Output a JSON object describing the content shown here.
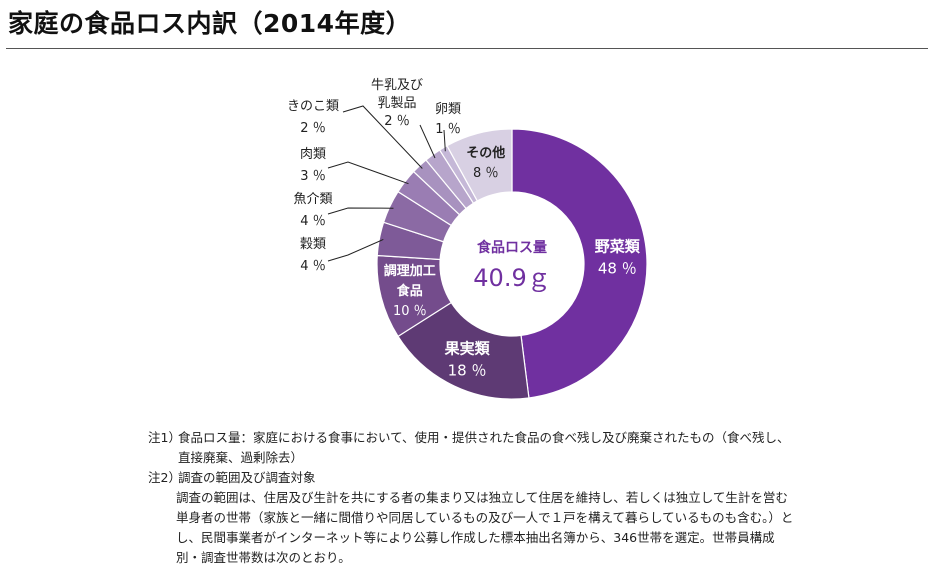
{
  "title": "家庭の食品ロス内訳（2014年度）",
  "chart_data": {
    "type": "pie",
    "variant": "donut",
    "center_label": "食品ロス量",
    "center_value": "40.9ｇ",
    "slices": [
      {
        "name_lines": [
          "野菜類"
        ],
        "value": 48,
        "label": "48 ％",
        "color": "#7030a0",
        "text_color": "#ffffff",
        "placement": "inside"
      },
      {
        "name_lines": [
          "果実類"
        ],
        "value": 18,
        "label": "18 ％",
        "color": "#5e3a74",
        "text_color": "#ffffff",
        "placement": "inside"
      },
      {
        "name_lines": [
          "調理加工",
          "食品"
        ],
        "value": 10,
        "label": "10 ％",
        "color": "#744c8c",
        "text_color": "#ffffff",
        "placement": "inside"
      },
      {
        "name_lines": [
          "穀類"
        ],
        "value": 4,
        "label": "4 ％",
        "color": "#7e5a98",
        "text_color": "#222222",
        "placement": "outside-left"
      },
      {
        "name_lines": [
          "魚介類"
        ],
        "value": 4,
        "label": "4 ％",
        "color": "#8b6aa4",
        "text_color": "#222222",
        "placement": "outside-left"
      },
      {
        "name_lines": [
          "肉類"
        ],
        "value": 3,
        "label": "3 ％",
        "color": "#9a7db3",
        "text_color": "#222222",
        "placement": "outside-left"
      },
      {
        "name_lines": [
          "きのこ類"
        ],
        "value": 2,
        "label": "2 ％",
        "color": "#a892bf",
        "text_color": "#222222",
        "placement": "outside-left"
      },
      {
        "name_lines": [
          "牛乳及び",
          "乳製品"
        ],
        "value": 2,
        "label": "2 ％",
        "color": "#b7a5cb",
        "text_color": "#222222",
        "placement": "outside-top"
      },
      {
        "name_lines": [
          "卵類"
        ],
        "value": 1,
        "label": "1 ％",
        "color": "#c5b8d7",
        "text_color": "#222222",
        "placement": "outside-top"
      },
      {
        "name_lines": [
          "その他"
        ],
        "value": 8,
        "label": "8 ％",
        "color": "#d8d0e3",
        "text_color": "#222222",
        "placement": "inside"
      }
    ]
  },
  "notes": {
    "n1_label": "注1）",
    "n1_text": "食品ロス量：家庭における食事において、使用・提供された食品の食べ残し及び廃棄されたもの（食べ残し、直接廃棄、過剰除去）",
    "n2_label": "注2）",
    "n2_title": "調査の範囲及び調査対象",
    "n2_body": "調査の範囲は、住居及び生計を共にする者の集まり又は独立して住居を維持し、若しくは独立して生計を営む単身者の世帯（家族と一緒に間借りや同居しているもの及び一人で１戸を構えて暮らしているものも含む。）とし、民間事業者がインターネット等により公募し作成した標本抽出名簿から、346世帯を選定。世帯員構成別・調査世帯数は次のとおり。"
  }
}
